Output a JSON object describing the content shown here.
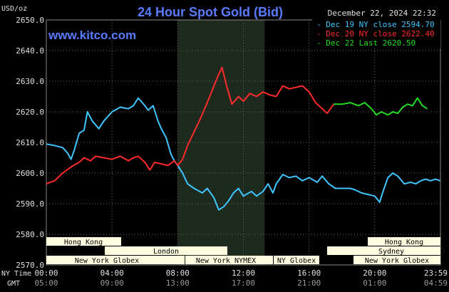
{
  "header": {
    "units": "USD/oz",
    "title": "24 Hour Spot Gold (Bid)",
    "datetime": "December 22, 2024 22:32",
    "site": "www.kitco.com"
  },
  "axis_labels": {
    "ny_time": "NY Time",
    "gmt": "GMT"
  },
  "sessions": {
    "row1": [
      "Hong Kong",
      "Hong Kong"
    ],
    "row2": [
      "London",
      "Sydney"
    ],
    "row3": [
      "New York Globex",
      "New York NYMEX",
      "NY Globex",
      "New York Globex"
    ]
  },
  "colors": {
    "background": "#000000",
    "plot_area": "#000000",
    "shade": "#1f2a1f",
    "grid": "#6b6b6b",
    "title": "#5b7bff",
    "site": "#5b7bff",
    "text": "#e0e0e0",
    "session_fill": "#fffce0",
    "session_text": "#000000"
  },
  "chart_data": {
    "type": "line",
    "title": "24 Hour Spot Gold (Bid)",
    "ylabel": "USD/oz",
    "ylim": [
      2570,
      2650
    ],
    "yticks": [
      "2650.0",
      "2640.0",
      "2630.0",
      "2620.0",
      "2610.0",
      "2600.0",
      "2590.0",
      "2580.0",
      "2570.0"
    ],
    "xticks_ny": [
      "00:00",
      "04:00",
      "08:00",
      "12:00",
      "16:00",
      "20:00",
      "23:59"
    ],
    "xticks_gmt": [
      "05:00",
      "09:00",
      "13:00",
      "17:00",
      "21:00",
      "01:00",
      "04:59"
    ],
    "grid": true,
    "legend_position": "top-right",
    "series": [
      {
        "name": "Dec 19 NY close 2594.70",
        "color": "#3fc6ff",
        "points": [
          [
            0.0,
            2609.5
          ],
          [
            0.5,
            2609.0
          ],
          [
            1.0,
            2608.3
          ],
          [
            1.3,
            2606.5
          ],
          [
            1.5,
            2604.5
          ],
          [
            1.7,
            2607.5
          ],
          [
            2.0,
            2613.0
          ],
          [
            2.3,
            2614.0
          ],
          [
            2.5,
            2620.0
          ],
          [
            2.8,
            2617.0
          ],
          [
            3.2,
            2614.5
          ],
          [
            3.5,
            2617.0
          ],
          [
            4.0,
            2620.0
          ],
          [
            4.5,
            2621.5
          ],
          [
            5.0,
            2621.0
          ],
          [
            5.3,
            2622.0
          ],
          [
            5.6,
            2624.5
          ],
          [
            6.0,
            2622.0
          ],
          [
            6.2,
            2620.5
          ],
          [
            6.5,
            2622.0
          ],
          [
            6.8,
            2617.0
          ],
          [
            7.0,
            2614.5
          ],
          [
            7.3,
            2611.5
          ],
          [
            7.6,
            2606.0
          ],
          [
            7.8,
            2604.0
          ],
          [
            8.0,
            2602.5
          ],
          [
            8.3,
            2600.0
          ],
          [
            8.6,
            2596.5
          ],
          [
            9.0,
            2595.0
          ],
          [
            9.5,
            2593.5
          ],
          [
            9.8,
            2595.0
          ],
          [
            10.2,
            2592.0
          ],
          [
            10.5,
            2588.0
          ],
          [
            10.8,
            2589.0
          ],
          [
            11.1,
            2591.0
          ],
          [
            11.4,
            2593.5
          ],
          [
            11.7,
            2595.0
          ],
          [
            12.0,
            2592.5
          ],
          [
            12.5,
            2594.0
          ],
          [
            12.8,
            2592.5
          ],
          [
            13.2,
            2594.0
          ],
          [
            13.5,
            2596.5
          ],
          [
            13.8,
            2593.5
          ],
          [
            14.0,
            2596.5
          ],
          [
            14.4,
            2599.5
          ],
          [
            14.8,
            2598.5
          ],
          [
            15.2,
            2599.0
          ],
          [
            15.6,
            2597.5
          ],
          [
            16.0,
            2598.5
          ],
          [
            16.5,
            2597.0
          ],
          [
            16.8,
            2599.0
          ],
          [
            17.2,
            2596.5
          ],
          [
            17.6,
            2595.0
          ],
          [
            18.0,
            2595.0
          ],
          [
            18.5,
            2595.0
          ],
          [
            18.8,
            2594.5
          ],
          [
            19.2,
            2593.5
          ],
          [
            19.6,
            2593.0
          ],
          [
            20.0,
            2592.5
          ],
          [
            20.3,
            2590.5
          ],
          [
            20.5,
            2594.0
          ],
          [
            20.8,
            2598.5
          ],
          [
            21.1,
            2600.0
          ],
          [
            21.4,
            2599.0
          ],
          [
            21.8,
            2596.5
          ],
          [
            22.2,
            2597.0
          ],
          [
            22.5,
            2596.5
          ],
          [
            22.8,
            2597.5
          ],
          [
            23.1,
            2598.0
          ],
          [
            23.4,
            2597.5
          ],
          [
            23.7,
            2598.0
          ],
          [
            23.98,
            2597.5
          ]
        ]
      },
      {
        "name": "Dec 20 NY close 2622.40",
        "color": "#ff2a2a",
        "points": [
          [
            0.0,
            2596.5
          ],
          [
            0.5,
            2597.5
          ],
          [
            1.0,
            2600.0
          ],
          [
            1.5,
            2602.0
          ],
          [
            2.0,
            2603.5
          ],
          [
            2.3,
            2605.0
          ],
          [
            2.7,
            2604.0
          ],
          [
            3.0,
            2605.5
          ],
          [
            3.5,
            2605.0
          ],
          [
            4.0,
            2604.5
          ],
          [
            4.5,
            2605.5
          ],
          [
            5.0,
            2604.0
          ],
          [
            5.3,
            2605.0
          ],
          [
            5.6,
            2605.5
          ],
          [
            6.0,
            2603.5
          ],
          [
            6.3,
            2601.0
          ],
          [
            6.6,
            2603.5
          ],
          [
            7.0,
            2603.0
          ],
          [
            7.4,
            2602.5
          ],
          [
            7.8,
            2604.0
          ],
          [
            8.0,
            2602.5
          ],
          [
            8.3,
            2604.5
          ],
          [
            8.6,
            2609.0
          ],
          [
            9.0,
            2613.5
          ],
          [
            9.4,
            2618.0
          ],
          [
            9.8,
            2623.0
          ],
          [
            10.1,
            2627.0
          ],
          [
            10.4,
            2631.0
          ],
          [
            10.7,
            2634.5
          ],
          [
            11.0,
            2628.0
          ],
          [
            11.3,
            2622.5
          ],
          [
            11.7,
            2625.0
          ],
          [
            12.0,
            2623.5
          ],
          [
            12.4,
            2626.0
          ],
          [
            12.8,
            2625.0
          ],
          [
            13.2,
            2626.5
          ],
          [
            13.6,
            2625.5
          ],
          [
            14.0,
            2625.0
          ],
          [
            14.4,
            2628.5
          ],
          [
            14.8,
            2627.5
          ],
          [
            15.2,
            2628.0
          ],
          [
            15.6,
            2628.5
          ],
          [
            16.0,
            2626.5
          ],
          [
            16.4,
            2623.0
          ],
          [
            16.8,
            2621.0
          ],
          [
            17.1,
            2619.5
          ],
          [
            17.5,
            2622.5
          ]
        ]
      },
      {
        "name": "Dec 22 Last 2620.50",
        "color": "#22dd22",
        "points": [
          [
            17.5,
            2622.5
          ],
          [
            18.0,
            2622.5
          ],
          [
            18.5,
            2623.0
          ],
          [
            19.0,
            2622.0
          ],
          [
            19.4,
            2623.0
          ],
          [
            19.8,
            2621.0
          ],
          [
            20.1,
            2619.0
          ],
          [
            20.4,
            2620.0
          ],
          [
            20.8,
            2619.0
          ],
          [
            21.1,
            2620.0
          ],
          [
            21.4,
            2619.5
          ],
          [
            21.7,
            2621.5
          ],
          [
            22.0,
            2622.5
          ],
          [
            22.3,
            2622.0
          ],
          [
            22.6,
            2624.5
          ],
          [
            22.9,
            2622.0
          ],
          [
            23.2,
            2621.0
          ]
        ]
      }
    ]
  }
}
